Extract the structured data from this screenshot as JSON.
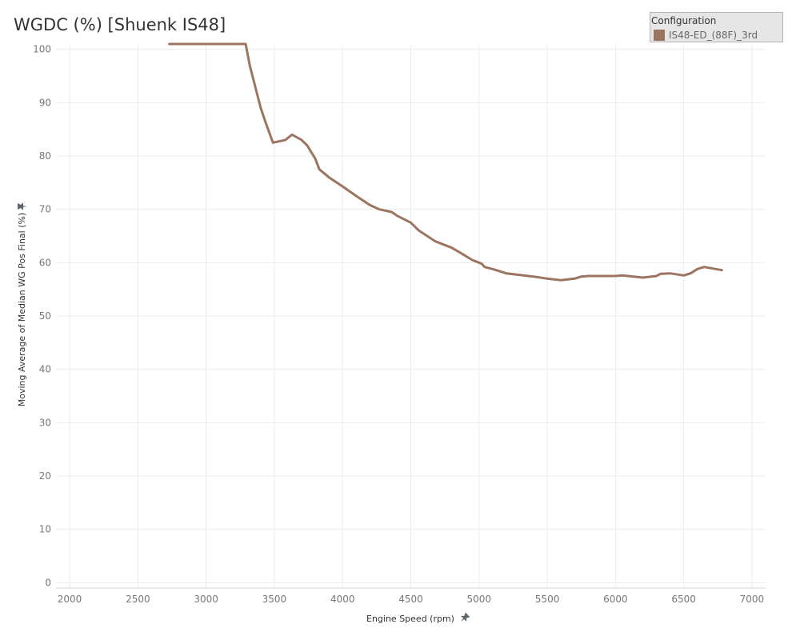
{
  "title": "WGDC (%) [Shuenk IS48]",
  "legend": {
    "title": "Configuration",
    "items": [
      {
        "label": "IS48-ED_(88F)_3rd",
        "color": "#9c7560"
      }
    ]
  },
  "chart_data": {
    "type": "line",
    "xlabel": "Engine Speed (rpm)",
    "ylabel": "Moving Average of Median WG Pos Final (%)",
    "xlim": [
      1900,
      7100
    ],
    "ylim": [
      -1,
      101
    ],
    "xticks": [
      2000,
      2500,
      3000,
      3500,
      4000,
      4500,
      5000,
      5500,
      6000,
      6500,
      7000
    ],
    "yticks": [
      0,
      10,
      20,
      30,
      40,
      50,
      60,
      70,
      80,
      90,
      100
    ],
    "grid": true,
    "legend_position": "top-right",
    "series": [
      {
        "name": "IS48-ED_(88F)_3rd",
        "color": "#9c7560",
        "x": [
          2730,
          2800,
          3000,
          3200,
          3290,
          3320,
          3400,
          3440,
          3490,
          3580,
          3630,
          3700,
          3740,
          3800,
          3830,
          3900,
          4000,
          4100,
          4200,
          4270,
          4360,
          4400,
          4500,
          4560,
          4680,
          4800,
          4880,
          4950,
          5020,
          5040,
          5100,
          5200,
          5300,
          5400,
          5500,
          5600,
          5700,
          5750,
          5800,
          5900,
          6000,
          6050,
          6200,
          6300,
          6330,
          6400,
          6500,
          6550,
          6600,
          6650,
          6780
        ],
        "y": [
          101,
          101,
          101,
          101,
          101,
          97,
          89,
          86,
          82.5,
          83,
          84,
          83,
          82,
          79.5,
          77.5,
          76,
          74.3,
          72.5,
          70.8,
          70,
          69.5,
          68.8,
          67.5,
          66,
          64,
          62.8,
          61.6,
          60.5,
          59.8,
          59.2,
          58.8,
          58,
          57.7,
          57.4,
          57,
          56.7,
          57,
          57.4,
          57.5,
          57.5,
          57.5,
          57.6,
          57.2,
          57.5,
          57.9,
          58,
          57.6,
          58,
          58.8,
          59.2,
          58.6
        ]
      }
    ]
  }
}
